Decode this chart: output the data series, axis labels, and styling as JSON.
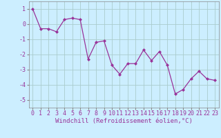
{
  "x": [
    0,
    1,
    2,
    3,
    4,
    5,
    6,
    7,
    8,
    9,
    10,
    11,
    12,
    13,
    14,
    15,
    16,
    17,
    18,
    19,
    20,
    21,
    22,
    23
  ],
  "y": [
    1.0,
    -0.3,
    -0.3,
    -0.5,
    0.3,
    0.4,
    0.3,
    -2.3,
    -1.2,
    -1.1,
    -2.7,
    -3.3,
    -2.6,
    -2.6,
    -1.7,
    -2.4,
    -1.8,
    -2.7,
    -4.6,
    -4.3,
    -3.6,
    -3.1,
    -3.6,
    -3.7
  ],
  "line_color": "#993399",
  "marker": "D",
  "marker_size": 2.0,
  "bg_color": "#cceeff",
  "grid_color": "#aacccc",
  "xlabel": "Windchill (Refroidissement éolien,°C)",
  "xlim": [
    -0.5,
    23.5
  ],
  "ylim": [
    -5.5,
    1.5
  ],
  "yticks": [
    -5,
    -4,
    -3,
    -2,
    -1,
    0,
    1
  ],
  "xticks": [
    0,
    1,
    2,
    3,
    4,
    5,
    6,
    7,
    8,
    9,
    10,
    11,
    12,
    13,
    14,
    15,
    16,
    17,
    18,
    19,
    20,
    21,
    22,
    23
  ],
  "label_color": "#993399",
  "xlabel_fontsize": 6.5,
  "tick_fontsize": 6.0,
  "linewidth": 0.9
}
